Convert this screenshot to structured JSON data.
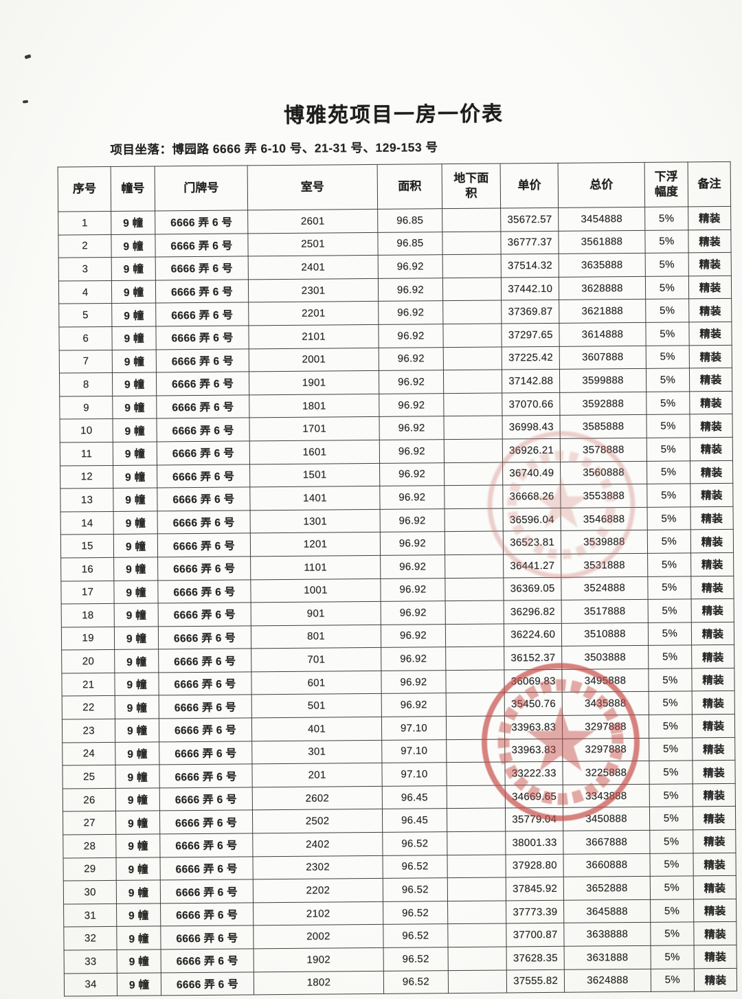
{
  "page": {
    "title": "博雅苑项目一房一价表",
    "location_line": "项目坐落：博园路 6666 弄 6-10 号、21-31 号、129-153 号"
  },
  "table": {
    "columns": [
      "序号",
      "幢号",
      "门牌号",
      "室号",
      "面积",
      "地下面积",
      "单价",
      "总价",
      "下浮幅度",
      "备注"
    ],
    "rows": [
      [
        "1",
        "9 幢",
        "6666 弄 6 号",
        "2601",
        "96.85",
        "",
        "35672.57",
        "3454888",
        "5%",
        "精装"
      ],
      [
        "2",
        "9 幢",
        "6666 弄 6 号",
        "2501",
        "96.85",
        "",
        "36777.37",
        "3561888",
        "5%",
        "精装"
      ],
      [
        "3",
        "9 幢",
        "6666 弄 6 号",
        "2401",
        "96.92",
        "",
        "37514.32",
        "3635888",
        "5%",
        "精装"
      ],
      [
        "4",
        "9 幢",
        "6666 弄 6 号",
        "2301",
        "96.92",
        "",
        "37442.10",
        "3628888",
        "5%",
        "精装"
      ],
      [
        "5",
        "9 幢",
        "6666 弄 6 号",
        "2201",
        "96.92",
        "",
        "37369.87",
        "3621888",
        "5%",
        "精装"
      ],
      [
        "6",
        "9 幢",
        "6666 弄 6 号",
        "2101",
        "96.92",
        "",
        "37297.65",
        "3614888",
        "5%",
        "精装"
      ],
      [
        "7",
        "9 幢",
        "6666 弄 6 号",
        "2001",
        "96.92",
        "",
        "37225.42",
        "3607888",
        "5%",
        "精装"
      ],
      [
        "8",
        "9 幢",
        "6666 弄 6 号",
        "1901",
        "96.92",
        "",
        "37142.88",
        "3599888",
        "5%",
        "精装"
      ],
      [
        "9",
        "9 幢",
        "6666 弄 6 号",
        "1801",
        "96.92",
        "",
        "37070.66",
        "3592888",
        "5%",
        "精装"
      ],
      [
        "10",
        "9 幢",
        "6666 弄 6 号",
        "1701",
        "96.92",
        "",
        "36998.43",
        "3585888",
        "5%",
        "精装"
      ],
      [
        "11",
        "9 幢",
        "6666 弄 6 号",
        "1601",
        "96.92",
        "",
        "36926.21",
        "3578888",
        "5%",
        "精装"
      ],
      [
        "12",
        "9 幢",
        "6666 弄 6 号",
        "1501",
        "96.92",
        "",
        "36740.49",
        "3560888",
        "5%",
        "精装"
      ],
      [
        "13",
        "9 幢",
        "6666 弄 6 号",
        "1401",
        "96.92",
        "",
        "36668.26",
        "3553888",
        "5%",
        "精装"
      ],
      [
        "14",
        "9 幢",
        "6666 弄 6 号",
        "1301",
        "96.92",
        "",
        "36596.04",
        "3546888",
        "5%",
        "精装"
      ],
      [
        "15",
        "9 幢",
        "6666 弄 6 号",
        "1201",
        "96.92",
        "",
        "36523.81",
        "3539888",
        "5%",
        "精装"
      ],
      [
        "16",
        "9 幢",
        "6666 弄 6 号",
        "1101",
        "96.92",
        "",
        "36441.27",
        "3531888",
        "5%",
        "精装"
      ],
      [
        "17",
        "9 幢",
        "6666 弄 6 号",
        "1001",
        "96.92",
        "",
        "36369.05",
        "3524888",
        "5%",
        "精装"
      ],
      [
        "18",
        "9 幢",
        "6666 弄 6 号",
        "901",
        "96.92",
        "",
        "36296.82",
        "3517888",
        "5%",
        "精装"
      ],
      [
        "19",
        "9 幢",
        "6666 弄 6 号",
        "801",
        "96.92",
        "",
        "36224.60",
        "3510888",
        "5%",
        "精装"
      ],
      [
        "20",
        "9 幢",
        "6666 弄 6 号",
        "701",
        "96.92",
        "",
        "36152.37",
        "3503888",
        "5%",
        "精装"
      ],
      [
        "21",
        "9 幢",
        "6666 弄 6 号",
        "601",
        "96.92",
        "",
        "36069.83",
        "3495888",
        "5%",
        "精装"
      ],
      [
        "22",
        "9 幢",
        "6666 弄 6 号",
        "501",
        "96.92",
        "",
        "35450.76",
        "3435888",
        "5%",
        "精装"
      ],
      [
        "23",
        "9 幢",
        "6666 弄 6 号",
        "401",
        "97.10",
        "",
        "33963.83",
        "3297888",
        "5%",
        "精装"
      ],
      [
        "24",
        "9 幢",
        "6666 弄 6 号",
        "301",
        "97.10",
        "",
        "33963.83",
        "3297888",
        "5%",
        "精装"
      ],
      [
        "25",
        "9 幢",
        "6666 弄 6 号",
        "201",
        "97.10",
        "",
        "33222.33",
        "3225888",
        "5%",
        "精装"
      ],
      [
        "26",
        "9 幢",
        "6666 弄 6 号",
        "2602",
        "96.45",
        "",
        "34669.65",
        "3343888",
        "5%",
        "精装"
      ],
      [
        "27",
        "9 幢",
        "6666 弄 6 号",
        "2502",
        "96.45",
        "",
        "35779.04",
        "3450888",
        "5%",
        "精装"
      ],
      [
        "28",
        "9 幢",
        "6666 弄 6 号",
        "2402",
        "96.52",
        "",
        "38001.33",
        "3667888",
        "5%",
        "精装"
      ],
      [
        "29",
        "9 幢",
        "6666 弄 6 号",
        "2302",
        "96.52",
        "",
        "37928.80",
        "3660888",
        "5%",
        "精装"
      ],
      [
        "30",
        "9 幢",
        "6666 弄 6 号",
        "2202",
        "96.52",
        "",
        "37845.92",
        "3652888",
        "5%",
        "精装"
      ],
      [
        "31",
        "9 幢",
        "6666 弄 6 号",
        "2102",
        "96.52",
        "",
        "37773.39",
        "3645888",
        "5%",
        "精装"
      ],
      [
        "32",
        "9 幢",
        "6666 弄 6 号",
        "2002",
        "96.52",
        "",
        "37700.87",
        "3638888",
        "5%",
        "精装"
      ],
      [
        "33",
        "9 幢",
        "6666 弄 6 号",
        "1902",
        "96.52",
        "",
        "37628.35",
        "3631888",
        "5%",
        "精装"
      ],
      [
        "34",
        "9 幢",
        "6666 弄 6 号",
        "1802",
        "96.52",
        "",
        "37555.82",
        "3624888",
        "5%",
        "精装"
      ]
    ]
  },
  "stamps": [
    {
      "name": "faint-round-seal",
      "color": "#cf7a74"
    },
    {
      "name": "company-round-seal-with-star",
      "color": "#c6504b"
    }
  ]
}
